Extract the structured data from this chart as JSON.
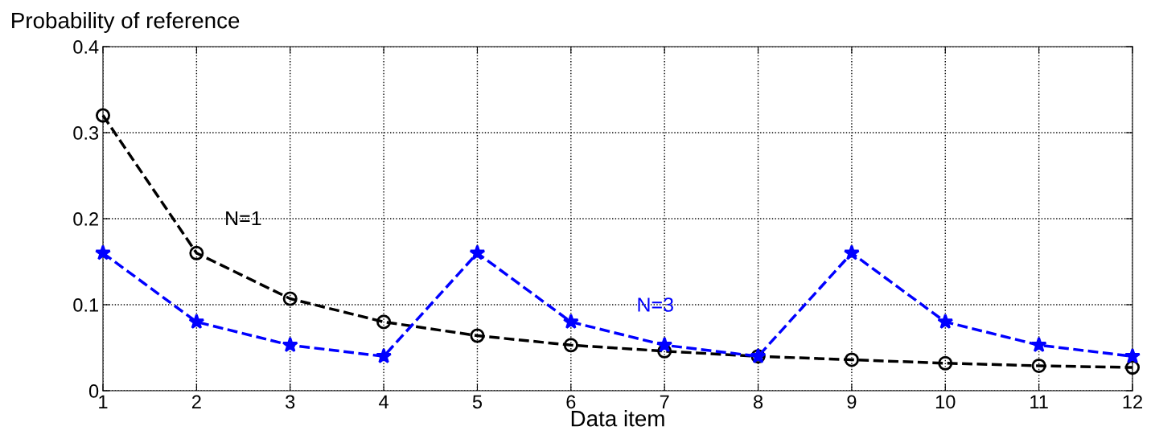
{
  "chart_data": {
    "type": "line",
    "xlabel": "Data item",
    "ylabel": "Probability of reference",
    "x": [
      1,
      2,
      3,
      4,
      5,
      6,
      7,
      8,
      9,
      10,
      11,
      12
    ],
    "series": [
      {
        "name": "N=1",
        "color": "#000000",
        "marker": "circle",
        "line_style": "dashed",
        "values": [
          0.32,
          0.16,
          0.107,
          0.08,
          0.064,
          0.053,
          0.046,
          0.04,
          0.036,
          0.032,
          0.029,
          0.027
        ]
      },
      {
        "name": "N=3",
        "color": "#0000ff",
        "marker": "star",
        "line_style": "dashed",
        "values": [
          0.16,
          0.08,
          0.053,
          0.04,
          0.16,
          0.08,
          0.053,
          0.04,
          0.16,
          0.08,
          0.053,
          0.04
        ]
      }
    ],
    "xlim": [
      1,
      12
    ],
    "xticks": [
      1,
      2,
      3,
      4,
      5,
      6,
      7,
      8,
      9,
      10,
      11,
      12
    ],
    "ylim": [
      0,
      0.4
    ],
    "yticks": [
      0,
      0.1,
      0.2,
      0.3,
      0.4
    ],
    "grid": true
  }
}
